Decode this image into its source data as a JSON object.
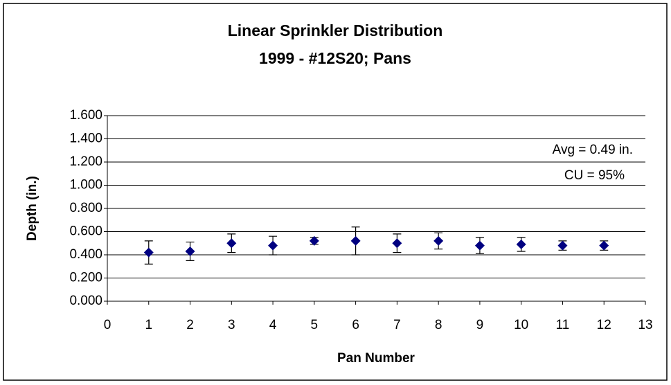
{
  "chart_data": {
    "type": "scatter",
    "title": "Linear Sprinkler Distribution",
    "subtitle": "1999 - #12S20; Pans",
    "x_label": "Pan Number",
    "y_label": "Depth (in.)",
    "annotations": [
      "Avg = 0.49 in.",
      "CU = 95%"
    ],
    "x": [
      1,
      2,
      3,
      4,
      5,
      6,
      7,
      8,
      9,
      10,
      11,
      12
    ],
    "series": [
      {
        "color": "#000080",
        "values": [
          0.42,
          0.43,
          0.5,
          0.48,
          0.52,
          0.52,
          0.5,
          0.52,
          0.48,
          0.49,
          0.48,
          0.48
        ],
        "errors": [
          0.1,
          0.08,
          0.08,
          0.08,
          0.03,
          0.12,
          0.08,
          0.07,
          0.07,
          0.06,
          0.04,
          0.04
        ]
      }
    ],
    "xlim": [
      0,
      13
    ],
    "xticks": [
      0,
      1,
      2,
      3,
      4,
      5,
      6,
      7,
      8,
      9,
      10,
      11,
      12,
      13
    ],
    "ylim": [
      0,
      1.6
    ],
    "yticks": [
      {
        "value": 0,
        "label": "0.000"
      },
      {
        "value": 0.2,
        "label": "0.200"
      },
      {
        "value": 0.4,
        "label": "0.400"
      },
      {
        "value": 0.6,
        "label": "0.600"
      },
      {
        "value": 0.8,
        "label": "0.800"
      },
      {
        "value": 1.0,
        "label": "1.000"
      },
      {
        "value": 1.2,
        "label": "1.200"
      },
      {
        "value": 1.4,
        "label": "1.400"
      },
      {
        "value": 1.6,
        "label": "1.600"
      }
    ],
    "grid": true
  }
}
